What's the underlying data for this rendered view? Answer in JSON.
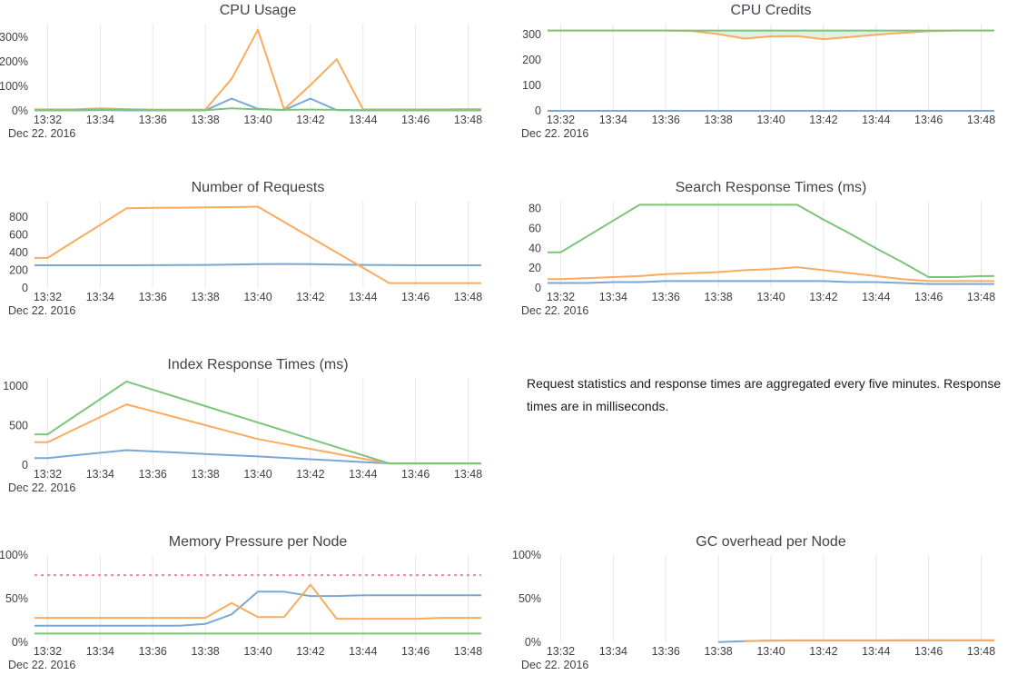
{
  "window": {
    "background": "#ffffff"
  },
  "note": {
    "text": "Request statistics and response times are aggregated every five minutes. Response times are in milliseconds."
  },
  "colors": {
    "blue": "#7aa7d4",
    "orange": "#fbab5f",
    "green": "#7cc47c",
    "red": "#e88a8a",
    "grid": "#e7e7e7",
    "label": "#3e3f47",
    "title": "#41424b",
    "fill_green": "rgba(124,196,124,0.22)"
  },
  "x_axis": {
    "date_label": "Dec 22. 2016",
    "tick_labels": [
      "13:32",
      "13:34",
      "13:36",
      "13:38",
      "13:40",
      "13:42",
      "13:44",
      "13:46",
      "13:48"
    ],
    "tick_minutes": [
      32,
      34,
      36,
      38,
      40,
      42,
      44,
      46,
      48
    ],
    "domain_minutes": [
      31.5,
      48.5
    ]
  },
  "chart_data": [
    {
      "type": "line",
      "title": "CPU Usage",
      "slug": "cpu-usage",
      "ylim": [
        0,
        355
      ],
      "y_ticks": [
        {
          "v": 0,
          "label": "0%"
        },
        {
          "v": 100,
          "label": "100%"
        },
        {
          "v": 200,
          "label": "200%"
        },
        {
          "v": 300,
          "label": "300%"
        }
      ],
      "series": [
        {
          "name": "cpu-usage-blue",
          "color": "blue",
          "start_minute": 32,
          "values": [
            2,
            2,
            3,
            2,
            2,
            2,
            2,
            50,
            8,
            3,
            50,
            3,
            2,
            2,
            2,
            2,
            2
          ]
        },
        {
          "name": "cpu-usage-orange",
          "color": "orange",
          "start_minute": 32,
          "values": [
            6,
            6,
            10,
            7,
            5,
            5,
            5,
            130,
            330,
            6,
            105,
            210,
            6,
            6,
            6,
            6,
            7
          ]
        },
        {
          "name": "cpu-usage-green",
          "color": "green",
          "start_minute": 32,
          "values": [
            3,
            3,
            5,
            4,
            3,
            3,
            3,
            10,
            6,
            4,
            5,
            4,
            3,
            3,
            3,
            3,
            3
          ]
        }
      ]
    },
    {
      "type": "line",
      "title": "CPU Credits",
      "slug": "cpu-credits",
      "ylim": [
        0,
        343
      ],
      "y_ticks": [
        {
          "v": 0,
          "label": "0"
        },
        {
          "v": 100,
          "label": "100"
        },
        {
          "v": 200,
          "label": "200"
        },
        {
          "v": 300,
          "label": "300"
        }
      ],
      "series": [
        {
          "name": "cpu-credits-blue",
          "color": "blue",
          "start_minute": 32,
          "values": [
            0,
            0,
            0,
            0,
            0,
            0,
            0,
            0,
            0,
            0,
            0,
            0,
            0,
            0,
            0,
            0,
            0
          ]
        },
        {
          "name": "cpu-credits-orange",
          "color": "orange",
          "start_minute": 32,
          "values": [
            316,
            316,
            316,
            316,
            316,
            314,
            302,
            284,
            293,
            294,
            282,
            290,
            299,
            307,
            313,
            316,
            316
          ]
        },
        {
          "name": "cpu-credits-green",
          "color": "green",
          "start_minute": 32,
          "values": [
            316,
            316,
            316,
            316,
            316,
            316,
            316,
            316,
            316,
            316,
            316,
            316,
            316,
            316,
            316,
            316,
            316
          ]
        }
      ],
      "fill_between": {
        "upper": 2,
        "lower": 1,
        "color_key": "fill_green"
      }
    },
    {
      "type": "line",
      "title": "Number of Requests",
      "slug": "number-of-requests",
      "ylim": [
        0,
        985
      ],
      "y_ticks": [
        {
          "v": 0,
          "label": "0"
        },
        {
          "v": 200,
          "label": "200"
        },
        {
          "v": 400,
          "label": "400"
        },
        {
          "v": 600,
          "label": "600"
        },
        {
          "v": 800,
          "label": "800"
        }
      ],
      "series": [
        {
          "name": "requests-blue",
          "color": "blue",
          "start_minute": 32,
          "values": [
            257,
            257,
            257,
            257,
            258,
            259,
            261,
            265,
            269,
            271,
            269,
            265,
            261,
            259,
            257,
            257,
            257
          ]
        },
        {
          "name": "requests-orange",
          "color": "orange",
          "start_minute": 32,
          "values": [
            340,
            527,
            713,
            900,
            905,
            907,
            910,
            913,
            918,
            745,
            573,
            400,
            228,
            55,
            55,
            55,
            55
          ]
        }
      ]
    },
    {
      "type": "line",
      "title": "Search Response Times (ms)",
      "slug": "search-response-times",
      "ylim": [
        0,
        88
      ],
      "y_ticks": [
        {
          "v": 0,
          "label": "0"
        },
        {
          "v": 20,
          "label": "20"
        },
        {
          "v": 40,
          "label": "40"
        },
        {
          "v": 60,
          "label": "60"
        },
        {
          "v": 80,
          "label": "80"
        }
      ],
      "series": [
        {
          "name": "search-blue",
          "color": "blue",
          "start_minute": 32,
          "values": [
            5,
            5,
            6,
            6,
            7,
            7,
            7,
            7,
            7,
            7,
            7,
            6,
            6,
            5,
            4,
            4,
            4
          ]
        },
        {
          "name": "search-orange",
          "color": "orange",
          "start_minute": 32,
          "values": [
            9,
            10,
            11,
            12,
            14,
            15,
            16,
            18,
            19,
            21,
            18,
            15,
            12,
            9,
            7,
            7,
            7
          ]
        },
        {
          "name": "search-green",
          "color": "green",
          "start_minute": 32,
          "values": [
            36,
            52,
            68,
            84,
            84,
            84,
            84,
            84,
            84,
            84,
            69,
            55,
            40,
            26,
            11,
            11,
            12
          ]
        }
      ]
    },
    {
      "type": "line",
      "title": "Index Response Times (ms)",
      "slug": "index-response-times",
      "ylim": [
        0,
        1105
      ],
      "y_ticks": [
        {
          "v": 0,
          "label": "0"
        },
        {
          "v": 500,
          "label": "500"
        },
        {
          "v": 1000,
          "label": "1000"
        }
      ],
      "series": [
        {
          "name": "index-blue",
          "color": "blue",
          "start_minute": 32,
          "values": [
            90,
            123,
            157,
            190,
            174,
            158,
            142,
            126,
            110,
            92,
            75,
            57,
            39,
            22,
            22,
            22,
            22
          ]
        },
        {
          "name": "index-orange",
          "color": "orange",
          "start_minute": 32,
          "values": [
            290,
            450,
            610,
            770,
            682,
            594,
            506,
            418,
            330,
            268,
            206,
            144,
            82,
            22,
            22,
            22,
            22
          ]
        },
        {
          "name": "index-green",
          "color": "green",
          "start_minute": 32,
          "values": [
            390,
            613,
            837,
            1060,
            956,
            852,
            748,
            644,
            540,
            436,
            332,
            228,
            124,
            22,
            22,
            22,
            22
          ]
        }
      ]
    },
    {
      "type": "line",
      "title": "Memory Pressure per Node",
      "slug": "memory-pressure-per-node",
      "ylim": [
        0,
        100
      ],
      "y_ticks": [
        {
          "v": 0,
          "label": "0%"
        },
        {
          "v": 50,
          "label": "50%"
        },
        {
          "v": 100,
          "label": "100%"
        }
      ],
      "series": [
        {
          "name": "memory-blue",
          "color": "blue",
          "start_minute": 32,
          "values": [
            19,
            19,
            19,
            19,
            19,
            19,
            21,
            32,
            58,
            58,
            53,
            53,
            54,
            54,
            54,
            54,
            54
          ]
        },
        {
          "name": "memory-orange",
          "color": "orange",
          "start_minute": 32,
          "values": [
            28,
            28,
            28,
            28,
            28,
            28,
            28,
            45,
            29,
            29,
            66,
            27,
            27,
            27,
            27,
            28,
            28
          ]
        },
        {
          "name": "memory-green",
          "color": "green",
          "start_minute": 32,
          "values": [
            10,
            10,
            10,
            10,
            10,
            10,
            10,
            10,
            10,
            10,
            10,
            10,
            10,
            10,
            10,
            10,
            10
          ]
        },
        {
          "name": "memory-threshold",
          "color": "red",
          "dash": true,
          "start_minute": 32,
          "values": [
            77,
            77,
            77,
            77,
            77,
            77,
            77,
            77,
            77,
            77,
            77,
            77,
            77,
            77,
            77,
            77,
            77
          ]
        }
      ]
    },
    {
      "type": "line",
      "title": "GC overhead per Node",
      "slug": "gc-overhead-per-node",
      "ylim": [
        0,
        100
      ],
      "y_ticks": [
        {
          "v": 0,
          "label": "0%"
        },
        {
          "v": 50,
          "label": "50%"
        },
        {
          "v": 100,
          "label": "100%"
        }
      ],
      "series": [
        {
          "name": "gc-blue",
          "color": "blue",
          "start_minute": 38,
          "values": [
            0.3,
            1.3,
            2.1,
            2.2,
            2.2,
            2.2,
            2.2,
            2.3,
            2.3,
            2.3,
            2.3
          ]
        },
        {
          "name": "gc-orange",
          "color": "orange",
          "start_minute": 39,
          "values": [
            1.4,
            1.9,
            2.0,
            2.0,
            2.0,
            2.0,
            2.0,
            2.0,
            2.1,
            2.1
          ]
        }
      ]
    }
  ]
}
